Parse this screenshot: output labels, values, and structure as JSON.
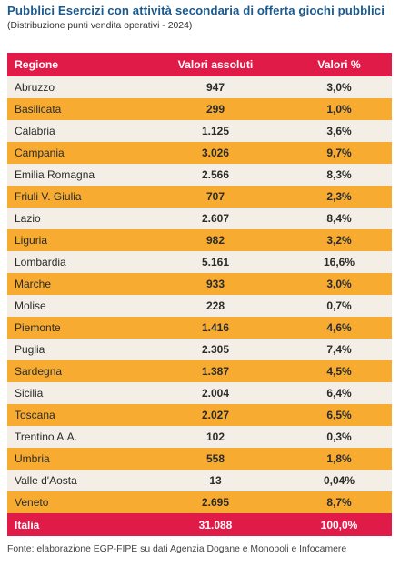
{
  "header": {
    "title": "Pubblici Esercizi con attività secondaria di offerta giochi pubblici",
    "subtitle": "(Distribuzione punti vendita operativi - 2024)"
  },
  "table": {
    "columns": [
      "Regione",
      "Valori assoluti",
      "Valori %"
    ],
    "rows": [
      {
        "region": "Abruzzo",
        "abs": "947",
        "pct": "3,0%"
      },
      {
        "region": "Basilicata",
        "abs": "299",
        "pct": "1,0%"
      },
      {
        "region": "Calabria",
        "abs": "1.125",
        "pct": "3,6%"
      },
      {
        "region": "Campania",
        "abs": "3.026",
        "pct": "9,7%"
      },
      {
        "region": "Emilia Romagna",
        "abs": "2.566",
        "pct": "8,3%"
      },
      {
        "region": "Friuli V. Giulia",
        "abs": "707",
        "pct": "2,3%"
      },
      {
        "region": "Lazio",
        "abs": "2.607",
        "pct": "8,4%"
      },
      {
        "region": "Liguria",
        "abs": "982",
        "pct": "3,2%"
      },
      {
        "region": "Lombardia",
        "abs": "5.161",
        "pct": "16,6%"
      },
      {
        "region": "Marche",
        "abs": "933",
        "pct": "3,0%"
      },
      {
        "region": "Molise",
        "abs": "228",
        "pct": "0,7%"
      },
      {
        "region": "Piemonte",
        "abs": "1.416",
        "pct": "4,6%"
      },
      {
        "region": "Puglia",
        "abs": "2.305",
        "pct": "7,4%"
      },
      {
        "region": "Sardegna",
        "abs": "1.387",
        "pct": "4,5%"
      },
      {
        "region": "Sicilia",
        "abs": "2.004",
        "pct": "6,4%"
      },
      {
        "region": "Toscana",
        "abs": "2.027",
        "pct": "6,5%"
      },
      {
        "region": "Trentino A.A.",
        "abs": "102",
        "pct": "0,3%"
      },
      {
        "region": "Umbria",
        "abs": "558",
        "pct": "1,8%"
      },
      {
        "region": "Valle d'Aosta",
        "abs": "13",
        "pct": "0,04%"
      },
      {
        "region": "Veneto",
        "abs": "2.695",
        "pct": "8,7%"
      }
    ],
    "total": {
      "region": "Italia",
      "abs": "31.088",
      "pct": "100,0%"
    }
  },
  "footer": {
    "source": "Fonte: elaborazione EGP-FIPE su dati Agenzia Dogane e Monopoli e Infocamere"
  },
  "colors": {
    "title": "#1b5a8e",
    "header_bg": "#e11b48",
    "row_light": "#f3efe6",
    "row_orange": "#f7ab31"
  }
}
